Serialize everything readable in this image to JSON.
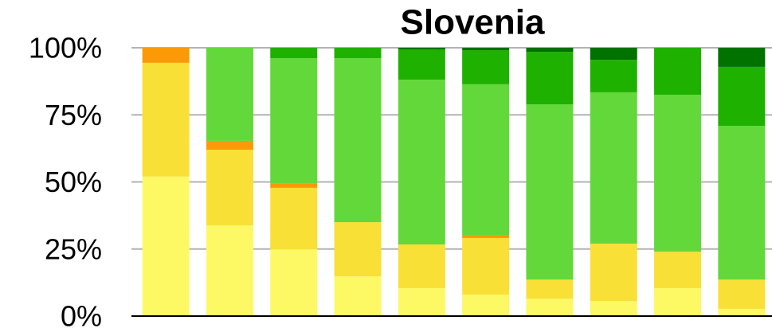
{
  "chart_data": {
    "type": "stacked_bar",
    "title": "Slovenia",
    "categories": [
      null,
      null,
      null,
      null,
      null,
      null,
      null,
      null,
      null,
      null
    ],
    "series": [
      {
        "color": "#fdf964",
        "values": [
          52,
          33.8,
          24.9,
          14.8,
          10.4,
          8,
          6.5,
          5.6,
          10.4,
          2.7
        ]
      },
      {
        "color": "#f8e036",
        "values": [
          42.4,
          28.2,
          22.9,
          20.2,
          16.3,
          21.1,
          7.1,
          21.4,
          13.6,
          10.9
        ]
      },
      {
        "color": "#fb9a06",
        "values": [
          5.6,
          3.3,
          1.5,
          0,
          0,
          0.9,
          0,
          0,
          0,
          0
        ]
      },
      {
        "color": "#63d83a",
        "values": [
          0,
          34.7,
          46.8,
          61.1,
          61.4,
          56.4,
          65.3,
          56.4,
          58.5,
          57.3
        ]
      },
      {
        "color": "#1fb100",
        "values": [
          0,
          0,
          3.9,
          3.9,
          11.3,
          12.7,
          19.6,
          12.1,
          17.5,
          22
        ]
      },
      {
        "color": "#017100",
        "values": [
          0,
          0,
          0,
          0,
          0.6,
          0.9,
          1.5,
          4.5,
          0,
          7.1
        ]
      }
    ],
    "ylim": [
      0,
      100
    ],
    "yticks": [
      {
        "value": 0,
        "label": "0%"
      },
      {
        "value": 25,
        "label": "25%"
      },
      {
        "value": 50,
        "label": "50%"
      },
      {
        "value": 75,
        "label": "75%"
      },
      {
        "value": 100,
        "label": "100%"
      }
    ],
    "grid": true
  }
}
